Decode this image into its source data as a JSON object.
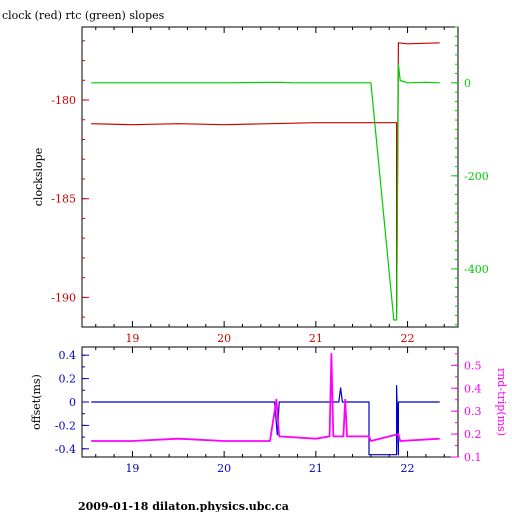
{
  "chart_data": [
    {
      "type": "line",
      "title": "clock (red) rtc (green) slopes",
      "xlabel": "",
      "ylabel": "clockslope",
      "xlim": [
        18.45,
        22.55
      ],
      "ylim": [
        -191.5,
        -176.3
      ],
      "y2lim": [
        -525,
        120
      ],
      "xticks": [
        "19",
        "20",
        "21",
        "22"
      ],
      "yticks": [
        "-180",
        "-185",
        "-190"
      ],
      "y2ticks": [
        "0",
        "-200",
        "-400"
      ],
      "colors": {
        "clock": "#cc0000",
        "rtc": "#00cc00",
        "axis": "#000000"
      },
      "series": [
        {
          "axis": "left",
          "points": [
            [
              18.55,
              -181.2
            ],
            [
              19.0,
              -181.25
            ],
            [
              19.5,
              -181.2
            ],
            [
              20.0,
              -181.25
            ],
            [
              20.5,
              -181.2
            ],
            [
              21.0,
              -181.15
            ],
            [
              21.5,
              -181.15
            ],
            [
              21.88,
              -181.15
            ],
            [
              21.88,
              -190.8
            ],
            [
              21.9,
              -177.1
            ],
            [
              22.0,
              -177.15
            ],
            [
              22.35,
              -177.1
            ]
          ]
        },
        {
          "axis": "right",
          "points": [
            [
              18.55,
              0
            ],
            [
              19.0,
              0
            ],
            [
              20.0,
              0
            ],
            [
              20.6,
              1
            ],
            [
              20.75,
              0
            ],
            [
              21.0,
              0
            ],
            [
              21.3,
              0
            ],
            [
              21.6,
              0
            ],
            [
              21.85,
              -510
            ],
            [
              21.88,
              -510
            ],
            [
              21.9,
              40
            ],
            [
              21.92,
              5
            ],
            [
              22.0,
              0
            ],
            [
              22.2,
              1
            ],
            [
              22.35,
              0
            ]
          ]
        }
      ]
    },
    {
      "type": "line",
      "title": "",
      "xlabel": "",
      "ylabel": "offset(ms)",
      "y2label": "rnd-trip(ms)",
      "xlim": [
        18.45,
        22.55
      ],
      "ylim": [
        -0.47,
        0.47
      ],
      "y2lim": [
        0.1,
        0.58
      ],
      "xticks": [
        "19",
        "20",
        "21",
        "22"
      ],
      "yticks": [
        "0.4",
        "0.2",
        "0",
        "-0.2",
        "-0.4"
      ],
      "y2ticks": [
        "0.5",
        "0.4",
        "0.3",
        "0.2",
        "0.1"
      ],
      "colors": {
        "offset": "#0000cc",
        "rndtrip": "#ff00ff"
      },
      "series": [
        {
          "axis": "left",
          "points": [
            [
              18.55,
              0.0
            ],
            [
              19.5,
              0.0
            ],
            [
              20.55,
              0.0
            ],
            [
              20.58,
              -0.28
            ],
            [
              20.6,
              0.0
            ],
            [
              21.25,
              0.0
            ],
            [
              21.27,
              0.12
            ],
            [
              21.29,
              0.0
            ],
            [
              21.58,
              0.0
            ],
            [
              21.58,
              -0.45
            ],
            [
              21.88,
              -0.45
            ],
            [
              21.88,
              0.14
            ],
            [
              21.9,
              -0.45
            ],
            [
              21.9,
              0.0
            ],
            [
              22.0,
              0.0
            ],
            [
              22.35,
              0.0
            ]
          ]
        },
        {
          "axis": "right",
          "points": [
            [
              18.55,
              0.17
            ],
            [
              19.0,
              0.17
            ],
            [
              19.5,
              0.18
            ],
            [
              20.0,
              0.17
            ],
            [
              20.5,
              0.17
            ],
            [
              20.57,
              0.35
            ],
            [
              20.6,
              0.19
            ],
            [
              21.0,
              0.18
            ],
            [
              21.15,
              0.19
            ],
            [
              21.17,
              0.55
            ],
            [
              21.19,
              0.19
            ],
            [
              21.3,
              0.19
            ],
            [
              21.32,
              0.35
            ],
            [
              21.34,
              0.19
            ],
            [
              21.58,
              0.19
            ],
            [
              21.6,
              0.17
            ],
            [
              21.9,
              0.2
            ],
            [
              21.92,
              0.17
            ],
            [
              22.35,
              0.18
            ]
          ]
        }
      ]
    }
  ],
  "footer": "2009-01-18 dilaton.physics.ubc.ca"
}
